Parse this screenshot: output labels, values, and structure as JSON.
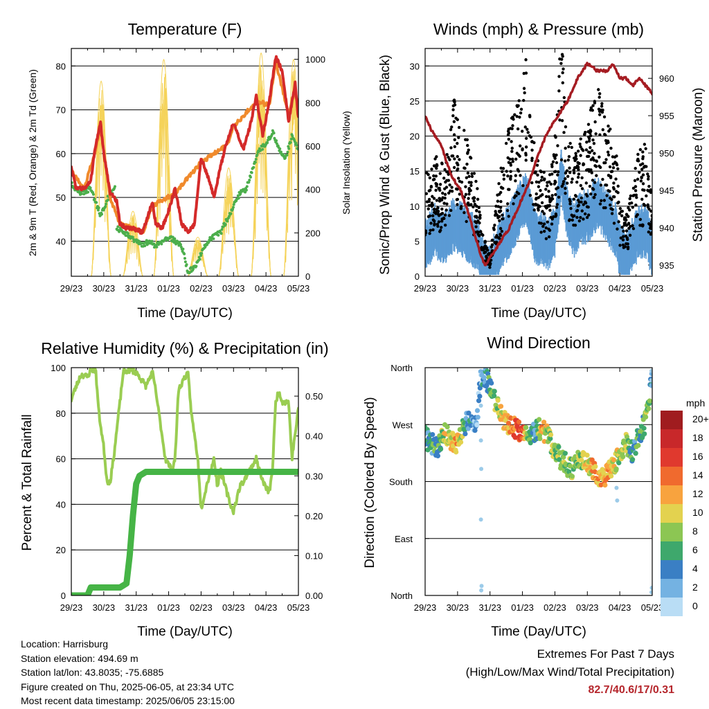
{
  "x_ticks": [
    "29/23",
    "30/23",
    "31/23",
    "01/23",
    "02/23",
    "03/23",
    "04/23",
    "05/23"
  ],
  "panels": {
    "temperature": {
      "title": "Temperature (F)",
      "xlabel": "Time (Day/UTC)",
      "ylabel_left": "2m & 9m T (Red, Orange) & 2m Td (Green)",
      "ylabel_right": "Solar Insolation (Yellow)"
    },
    "winds": {
      "title": "Winds (mph) & Pressure (mb)",
      "xlabel": "Time (Day/UTC)",
      "ylabel_left": "Sonic/Prop Wind & Gust (Blue, Black)",
      "ylabel_right": "Station Pressure (Maroon)"
    },
    "humidity": {
      "title": "Relative Humidity (%) & Precipitation (in)",
      "xlabel": "Time (Day/UTC)",
      "ylabel_left": "Percent & Total Rainfall"
    },
    "direction": {
      "title": "Wind Direction",
      "xlabel": "Time (Day/UTC)",
      "ylabel_left": "Direction (Colored By Speed)",
      "colorbar_title": "mph",
      "colorbar_labels": [
        "20+",
        "18",
        "16",
        "14",
        "12",
        "10",
        "8",
        "6",
        "4",
        "2",
        "0"
      ]
    }
  },
  "info": {
    "location": "Location: Harrisburg",
    "elevation": "Station elevation: 494.69 m",
    "latlon": "Station lat/lon: 43.8035; -75.6885",
    "created": "Figure created on Thu, 2025-06-05, at 23:34 UTC",
    "recent": "Most recent data timestamp: 2025/06/05 23:15:00"
  },
  "extremes": {
    "title": "Extremes For Past 7 Days",
    "subtitle": "(High/Low/Max Wind/Total Precipitation)",
    "values": "82.7/40.6/17/0.31"
  },
  "colors": {
    "temp_red": "#d42a2a",
    "temp_orange": "#f08a2c",
    "dewpoint_green": "#4cae4c",
    "solar_yellow": "#f5d35a",
    "wind_blue": "#5b9bd5",
    "gust_black": "#000000",
    "pressure_maroon": "#a51c22",
    "rh_lightgreen": "#9acd52",
    "precip_green": "#46b446"
  },
  "chart_data": [
    {
      "type": "line",
      "title": "Temperature (F)",
      "xlabel": "Time (Day/UTC)",
      "ylabel": "2m & 9m T (Red, Orange) & 2m Td (Green)",
      "y2label": "Solar Insolation (Yellow)",
      "xlim": [
        0,
        7
      ],
      "ylim": [
        32,
        84
      ],
      "y2lim": [
        0,
        1050
      ],
      "yticks": [
        40,
        50,
        60,
        70,
        80
      ],
      "y2ticks": [
        0,
        200,
        400,
        600,
        800,
        1000
      ],
      "grid": true,
      "series": [
        {
          "key": "t2m",
          "color": "#d42a2a",
          "x": [
            0,
            0.15,
            0.4,
            0.6,
            0.75,
            0.9,
            1.0,
            1.2,
            1.4,
            1.5,
            1.7,
            1.9,
            2.2,
            2.5,
            2.6,
            2.8,
            3.0,
            3.2,
            3.4,
            3.6,
            3.8,
            4.0,
            4.2,
            4.4,
            4.6,
            4.8,
            5.0,
            5.3,
            5.5,
            5.7,
            5.9,
            6.1,
            6.3,
            6.5,
            6.7,
            6.9,
            7.0
          ],
          "y": [
            57,
            52,
            52,
            54,
            62,
            67,
            60,
            51,
            49,
            44,
            43,
            43,
            42,
            49,
            44,
            43,
            47,
            52,
            44,
            42,
            44,
            59,
            55,
            50,
            57,
            63,
            67,
            61,
            66,
            73,
            64,
            72,
            82,
            79,
            67,
            76,
            68
          ]
        },
        {
          "key": "t9m",
          "color": "#f08a2c",
          "x": [
            0,
            0.4,
            0.75,
            0.9,
            1.2,
            1.5,
            2.2,
            2.5,
            3.2,
            4.0,
            4.8,
            5.0,
            5.7,
            6.1,
            6.3,
            6.7,
            6.9,
            7.0
          ],
          "y": [
            56,
            52,
            61,
            66,
            50,
            44,
            42,
            48,
            51,
            58,
            62,
            66,
            72,
            71,
            81,
            69,
            75,
            70
          ]
        },
        {
          "key": "td2m",
          "color": "#4cae4c",
          "x": [
            0,
            0.3,
            0.6,
            0.9,
            1.2,
            1.35,
            1.4,
            1.6,
            1.8,
            2.0,
            2.2,
            2.4,
            2.6,
            2.8,
            3.0,
            3.2,
            3.4,
            3.6,
            3.8,
            4.0,
            4.2,
            4.4,
            4.6,
            4.8,
            5.0,
            5.2,
            5.4,
            5.6,
            5.8,
            6.0,
            6.2,
            6.4,
            6.6,
            6.8,
            7.0
          ],
          "y": [
            53,
            51,
            52,
            46,
            51,
            52,
            43,
            42,
            41,
            40,
            39,
            40,
            39,
            40,
            41,
            40,
            39,
            33,
            34,
            37,
            40,
            41,
            42,
            45,
            48,
            51,
            52,
            57,
            61,
            62,
            65,
            61,
            59,
            64,
            61
          ]
        }
      ],
      "solar": {
        "key": "solar",
        "color": "#f5d35a",
        "day_peaks": [
          {
            "center": 0.92,
            "peak": 900
          },
          {
            "center": 1.9,
            "peak": 300
          },
          {
            "center": 2.85,
            "peak": 1000
          },
          {
            "center": 3.9,
            "peak": 180
          },
          {
            "center": 4.85,
            "peak": 500
          },
          {
            "center": 5.85,
            "peak": 1030
          },
          {
            "center": 6.85,
            "peak": 1000
          }
        ]
      }
    },
    {
      "type": "scatter",
      "title": "Winds (mph) & Pressure (mb)",
      "xlabel": "Time (Day/UTC)",
      "ylabel": "Sonic/Prop Wind & Gust (Blue, Black)",
      "y2label": "Station Pressure (Maroon)",
      "xlim": [
        0,
        7
      ],
      "ylim": [
        0,
        32.5
      ],
      "y2lim": [
        933.5,
        964
      ],
      "yticks": [
        0,
        5,
        10,
        15,
        20,
        25,
        30
      ],
      "y2ticks": [
        935,
        940,
        945,
        950,
        955,
        960
      ],
      "grid": true,
      "series": [
        {
          "key": "wind_trend",
          "color": "#5b9bd5",
          "x": [
            0,
            0.3,
            0.6,
            0.9,
            1.2,
            1.6,
            1.8,
            2.0,
            2.3,
            2.6,
            2.9,
            3.1,
            3.4,
            3.6,
            3.8,
            4.0,
            4.2,
            4.4,
            4.6,
            4.8,
            5.0,
            5.3,
            5.6,
            5.9,
            6.0,
            6.2,
            6.4,
            6.6,
            6.8,
            7.0
          ],
          "y": [
            5,
            7,
            6,
            8,
            7,
            5,
            2,
            1,
            5,
            7,
            10,
            12,
            6,
            6,
            5,
            7,
            15,
            9,
            7,
            9,
            9,
            11,
            9,
            7,
            4,
            3,
            5,
            7,
            7,
            4
          ]
        },
        {
          "key": "gust_trend",
          "color": "#000000",
          "x": [
            0,
            0.3,
            0.6,
            0.9,
            1.2,
            1.6,
            1.8,
            2.0,
            2.3,
            2.6,
            2.9,
            3.1,
            3.4,
            3.6,
            3.8,
            4.0,
            4.2,
            4.4,
            4.6,
            4.8,
            5.0,
            5.3,
            5.6,
            5.9,
            6.0,
            6.2,
            6.4,
            6.6,
            6.8,
            7.0
          ],
          "y": [
            10,
            12,
            11,
            18,
            15,
            9,
            4,
            2,
            10,
            15,
            18,
            22,
            12,
            11,
            9,
            14,
            24,
            15,
            12,
            14,
            15,
            19,
            16,
            13,
            7,
            6,
            9,
            13,
            13,
            8
          ]
        },
        {
          "key": "pressure",
          "color": "#a51c22",
          "x": [
            0,
            0.2,
            0.5,
            0.8,
            1.1,
            1.4,
            1.6,
            1.75,
            1.85,
            2.0,
            2.3,
            2.6,
            2.9,
            3.2,
            3.5,
            3.8,
            4.1,
            4.4,
            4.7,
            5.0,
            5.3,
            5.6,
            5.8,
            6.0,
            6.2,
            6.4,
            6.6,
            6.8,
            7.0
          ],
          "y": [
            955,
            953,
            951,
            947,
            945,
            941,
            938,
            936,
            935,
            936,
            938,
            940,
            943,
            946,
            950,
            953,
            955,
            957,
            960,
            962,
            961,
            961,
            962,
            960,
            960,
            959,
            960,
            959,
            958
          ]
        }
      ]
    },
    {
      "type": "line",
      "title": "Relative Humidity (%) & Precipitation (in)",
      "xlabel": "Time (Day/UTC)",
      "ylabel": "Percent & Total Rainfall",
      "xlim": [
        0,
        7
      ],
      "ylim": [
        0,
        100
      ],
      "y2lim": [
        0,
        0.5714
      ],
      "yticks": [
        0,
        20,
        40,
        60,
        80,
        100
      ],
      "y2ticks": [
        0.0,
        0.1,
        0.2,
        0.3,
        0.4,
        0.5
      ],
      "y2ticklabels": [
        "0.00",
        "0.10",
        "0.20",
        "0.30",
        "0.40",
        "0.50"
      ],
      "grid": true,
      "series": [
        {
          "key": "rh",
          "color": "#9acd52",
          "x": [
            0,
            0.1,
            0.3,
            0.5,
            0.6,
            0.75,
            0.85,
            1.0,
            1.1,
            1.2,
            1.3,
            1.5,
            1.6,
            1.8,
            2.0,
            2.3,
            2.5,
            2.6,
            2.9,
            3.1,
            3.2,
            3.3,
            3.5,
            3.6,
            3.7,
            3.9,
            4.0,
            4.2,
            4.4,
            4.5,
            4.6,
            4.8,
            4.9,
            5.0,
            5.2,
            5.3,
            5.5,
            5.7,
            5.9,
            6.1,
            6.2,
            6.3,
            6.4,
            6.5,
            6.7,
            6.8,
            7.0
          ],
          "y": [
            86,
            90,
            97,
            96,
            99,
            99,
            80,
            65,
            50,
            50,
            60,
            85,
            98,
            99,
            98,
            92,
            98,
            90,
            60,
            55,
            60,
            90,
            96,
            97,
            80,
            60,
            38,
            50,
            60,
            48,
            55,
            45,
            40,
            37,
            48,
            50,
            55,
            60,
            50,
            45,
            55,
            85,
            90,
            85,
            85,
            60,
            82
          ]
        },
        {
          "key": "precip",
          "color": "#46b446",
          "axis": "right",
          "x": [
            0,
            0.5,
            0.6,
            1.5,
            1.7,
            1.8,
            1.9,
            2.0,
            2.1,
            2.3,
            3.0,
            4.0,
            7.0
          ],
          "y": [
            0.0,
            0.0,
            0.02,
            0.02,
            0.03,
            0.1,
            0.2,
            0.28,
            0.3,
            0.31,
            0.31,
            0.31,
            0.31
          ]
        }
      ]
    },
    {
      "type": "scatter",
      "title": "Wind Direction",
      "xlabel": "Time (Day/UTC)",
      "ylabel": "Direction (Colored By Speed)",
      "xlim": [
        0,
        7
      ],
      "ylim": [
        0,
        360
      ],
      "ytick_values": [
        0,
        90,
        180,
        270,
        360
      ],
      "ytick_labels": [
        "North",
        "East",
        "South",
        "West",
        "North"
      ],
      "grid": true,
      "colorbar": {
        "title": "mph",
        "labels": [
          "20+",
          "18",
          "16",
          "14",
          "12",
          "10",
          "8",
          "6",
          "4",
          "2",
          "0"
        ],
        "colors": [
          "#a01c1f",
          "#c8282a",
          "#e0392e",
          "#f06a2e",
          "#f8a33e",
          "#e3d24f",
          "#8cc653",
          "#3ea86c",
          "#3a7fc4",
          "#74b2e2",
          "#b9ddf5"
        ]
      },
      "series": [
        {
          "key": "dir_trend",
          "x": [
            0,
            0.2,
            0.4,
            0.6,
            0.8,
            1.0,
            1.1,
            1.3,
            1.5,
            1.6,
            1.7,
            1.8,
            2.0,
            2.2,
            2.5,
            2.8,
            3.0,
            3.2,
            3.4,
            3.6,
            3.8,
            4.0,
            4.2,
            4.5,
            4.8,
            5.0,
            5.3,
            5.6,
            5.9,
            6.2,
            6.4,
            6.6,
            6.8,
            7.0
          ],
          "y": [
            250,
            240,
            235,
            255,
            245,
            240,
            255,
            275,
            272,
            280,
            340,
            350,
            330,
            300,
            270,
            265,
            255,
            250,
            260,
            265,
            248,
            230,
            215,
            200,
            215,
            210,
            190,
            190,
            215,
            240,
            225,
            255,
            275,
            350
          ],
          "speed": [
            4,
            5,
            5,
            10,
            11,
            12,
            8,
            4,
            3,
            3,
            2,
            3,
            6,
            8,
            12,
            14,
            15,
            6,
            4,
            12,
            8,
            8,
            9,
            7,
            8,
            10,
            12,
            12,
            9,
            8,
            4,
            6,
            7,
            4
          ]
        }
      ]
    }
  ]
}
